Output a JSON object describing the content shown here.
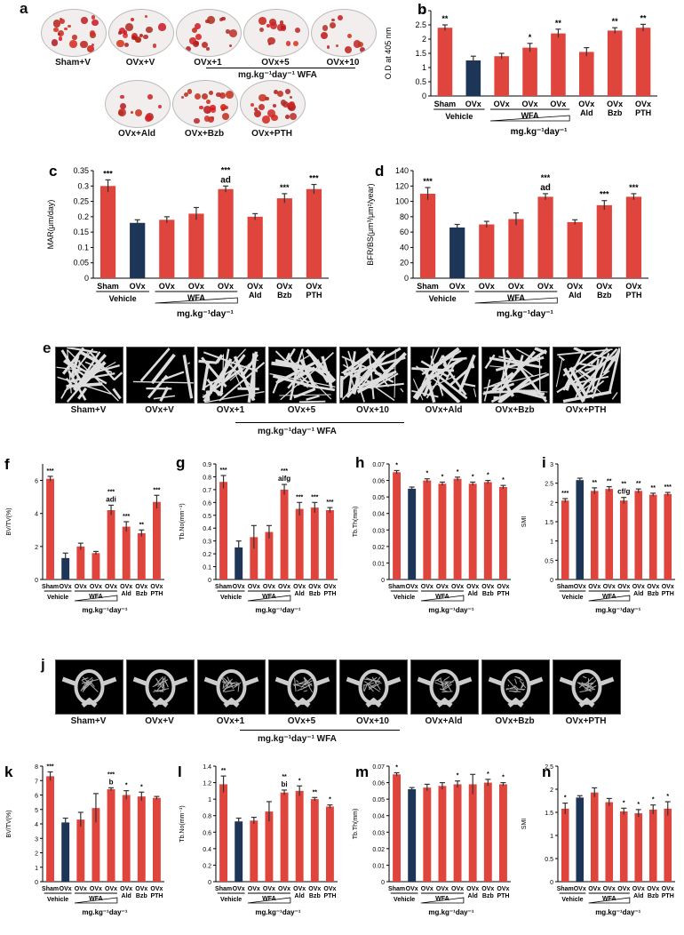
{
  "panels": {
    "a": {
      "label": "a",
      "row1": [
        "Sham+V",
        "OVx+V",
        "OVx+1",
        "OVx+5",
        "OVx+10"
      ],
      "row2": [
        "OVx+Ald",
        "OVx+Bzb",
        "OVx+PTH"
      ],
      "caption": "mg.kg⁻¹day⁻¹ WFA"
    },
    "e": {
      "label": "e",
      "images": [
        "Sham+V",
        "OVx+V",
        "OVx+1",
        "OVx+5",
        "OVx+10",
        "OVx+Ald",
        "OVx+Bzb",
        "OVx+PTH"
      ],
      "caption": "mg.kg⁻¹day⁻¹ WFA"
    },
    "j": {
      "label": "j",
      "images": [
        "Sham+V",
        "OVx+V",
        "OVx+1",
        "OVx+5",
        "OVx+10",
        "OVx+Ald",
        "OVx+Bzb",
        "OVx+PTH"
      ],
      "caption": "mg.kg⁻¹day⁻¹ WFA"
    }
  },
  "colors": {
    "red": "#e0453d",
    "navy": "#1d3557",
    "error": "#333333"
  },
  "chart_data": [
    {
      "id": "b",
      "type": "bar",
      "ylabel": "O.D at 405 nm",
      "ylim": [
        0,
        3
      ],
      "yticks": [
        0,
        0.5,
        1,
        1.5,
        2,
        2.5,
        3
      ],
      "groups": [
        "Sham",
        "OVx",
        "OVx",
        "OVx",
        "OVx",
        "OVx\nAld",
        "OVx\nBzb",
        "OVx\nPTH"
      ],
      "values": [
        2.4,
        1.25,
        1.4,
        1.7,
        2.2,
        1.55,
        2.3,
        2.4
      ],
      "errors": [
        0.1,
        0.15,
        0.1,
        0.15,
        0.15,
        0.15,
        0.1,
        0.12
      ],
      "sig": [
        "**",
        "",
        "",
        "*",
        "**",
        "",
        "**",
        "**"
      ],
      "sub": [
        "",
        ""
      ],
      "vehicle": "Vehicle",
      "wfa": "WFA",
      "unit": "mg.kg⁻¹day⁻¹"
    },
    {
      "id": "c",
      "type": "bar",
      "ylabel": "MAR(μm/day)",
      "ylim": [
        0,
        0.35
      ],
      "yticks": [
        0,
        0.05,
        0.1,
        0.15,
        0.2,
        0.25,
        0.3,
        0.35
      ],
      "groups": [
        "Sham",
        "OVx",
        "OVx",
        "OVx",
        "OVx",
        "OVx\nAld",
        "OVx\nBzb",
        "OVx\nPTH"
      ],
      "values": [
        0.3,
        0.18,
        0.19,
        0.21,
        0.29,
        0.2,
        0.26,
        0.29
      ],
      "errors": [
        0.02,
        0.01,
        0.01,
        0.02,
        0.01,
        0.01,
        0.015,
        0.015
      ],
      "sig": [
        "***",
        "",
        "",
        "",
        "***\nad",
        "",
        "***",
        "***"
      ],
      "vehicle": "Vehicle",
      "wfa": "WFA",
      "unit": "mg.kg⁻¹day⁻¹"
    },
    {
      "id": "d",
      "type": "bar",
      "ylabel": "BFR/BS(μm³/μm²/year)",
      "ylim": [
        0,
        140
      ],
      "yticks": [
        0,
        20,
        40,
        60,
        80,
        100,
        120,
        140
      ],
      "groups": [
        "Sham",
        "OVx",
        "OVx",
        "OVx",
        "OVx",
        "OVx\nAld",
        "OVx\nBzb",
        "OVx\nPTH"
      ],
      "values": [
        110,
        66,
        70,
        77,
        106,
        73,
        95,
        106
      ],
      "errors": [
        8,
        4,
        4,
        8,
        4,
        3,
        6,
        4
      ],
      "sig": [
        "***",
        "",
        "",
        "",
        "***\nad",
        "",
        "***",
        "***"
      ],
      "vehicle": "Vehicle",
      "wfa": "WFA",
      "unit": "mg.kg⁻¹day⁻¹"
    },
    {
      "id": "f",
      "type": "bar",
      "ylabel": "BV/TV(%)",
      "ylim": [
        0,
        7
      ],
      "yticks": [
        0,
        2,
        4,
        6
      ],
      "groups": [
        "Sham",
        "OVx",
        "OVx",
        "OVx",
        "OVx",
        "OVx\nAld",
        "OVx\nBzb",
        "OVx\nPTH"
      ],
      "values": [
        6.1,
        1.3,
        2.0,
        1.6,
        4.2,
        3.2,
        2.8,
        4.7
      ],
      "errors": [
        0.15,
        0.3,
        0.2,
        0.1,
        0.3,
        0.3,
        0.2,
        0.4
      ],
      "sig": [
        "***",
        "",
        "",
        "",
        "***\nadi",
        "***",
        "**",
        "***"
      ],
      "vehicle": "Vehicle",
      "wfa": "WFA",
      "unit": "mg.kg⁻¹day⁻¹"
    },
    {
      "id": "g",
      "type": "bar",
      "ylabel": "Tb.No(mm⁻¹)",
      "ylim": [
        0,
        0.9
      ],
      "yticks": [
        0,
        0.1,
        0.2,
        0.3,
        0.4,
        0.5,
        0.6,
        0.7,
        0.8,
        0.9
      ],
      "groups": [
        "Sham",
        "OVx",
        "OVx",
        "OVx",
        "OVx",
        "OVx\nAld",
        "OVx\nBzb",
        "OVx\nPTH"
      ],
      "values": [
        0.76,
        0.25,
        0.33,
        0.37,
        0.7,
        0.55,
        0.56,
        0.54
      ],
      "errors": [
        0.05,
        0.05,
        0.09,
        0.05,
        0.04,
        0.05,
        0.04,
        0.02
      ],
      "sig": [
        "***",
        "",
        "",
        "",
        "***\naifg",
        "***",
        "***",
        "***"
      ],
      "vehicle": "Vehicle",
      "wfa": "WFA",
      "unit": "mg.kg⁻¹day⁻¹"
    },
    {
      "id": "h",
      "type": "bar",
      "ylabel": "Tb.Th(mm)",
      "ylim": [
        0,
        0.07
      ],
      "yticks": [
        0,
        0.01,
        0.02,
        0.03,
        0.04,
        0.05,
        0.06,
        0.07
      ],
      "groups": [
        "Sham",
        "OVx",
        "OVx",
        "OVx",
        "OVx",
        "OVx\nAld",
        "OVx\nBzb",
        "OVx\nPTH"
      ],
      "values": [
        0.065,
        0.055,
        0.06,
        0.058,
        0.061,
        0.058,
        0.059,
        0.056
      ],
      "errors": [
        0.001,
        0.001,
        0.001,
        0.001,
        0.001,
        0.001,
        0.001,
        0.001
      ],
      "sig": [
        "*",
        "",
        "*",
        "*",
        "*",
        "*",
        "*",
        "*"
      ],
      "vehicle": "Vehicle",
      "wfa": "WFA",
      "unit": "mg.kg⁻¹day⁻¹"
    },
    {
      "id": "i",
      "type": "bar",
      "ylabel": "SMI",
      "ylim": [
        0,
        3
      ],
      "yticks": [
        0,
        0.5,
        1,
        1.5,
        2,
        2.5,
        3
      ],
      "groups": [
        "Sham",
        "OVx",
        "OVx",
        "OVx",
        "OVx",
        "OVx\nAld",
        "OVx\nBzb",
        "OVx\nPTH"
      ],
      "values": [
        2.05,
        2.58,
        2.3,
        2.35,
        2.05,
        2.3,
        2.2,
        2.22
      ],
      "errors": [
        0.05,
        0.05,
        0.08,
        0.06,
        0.08,
        0.05,
        0.04,
        0.04
      ],
      "sig": [
        "***",
        "",
        "**",
        "**",
        "**\ncf/g",
        "**",
        "**",
        "***"
      ],
      "vehicle": "Vehicle",
      "wfa": "WFA",
      "unit": "mg.kg⁻¹day⁻¹"
    },
    {
      "id": "k",
      "type": "bar",
      "ylabel": "BV/TV(%)",
      "ylim": [
        0,
        8
      ],
      "yticks": [
        0,
        1,
        2,
        3,
        4,
        5,
        6,
        7,
        8
      ],
      "groups": [
        "Sham",
        "OVx",
        "OVx",
        "OVx",
        "OVx",
        "OVx\nAld",
        "OVx\nBzb",
        "OVx\nPTH"
      ],
      "values": [
        7.3,
        4.1,
        4.3,
        5.1,
        6.4,
        6.0,
        5.9,
        5.8
      ],
      "errors": [
        0.3,
        0.3,
        0.5,
        1.0,
        0.1,
        0.3,
        0.3,
        0.1
      ],
      "sig": [
        "***",
        "",
        "",
        "",
        "***\nb",
        "*",
        "*",
        ""
      ],
      "vehicle": "Vehicle",
      "wfa": "WFA",
      "unit": "mg.kg⁻¹day⁻¹"
    },
    {
      "id": "l",
      "type": "bar",
      "ylabel": "Tb.No(mm⁻¹)",
      "ylim": [
        0,
        1.4
      ],
      "yticks": [
        0,
        0.2,
        0.4,
        0.6,
        0.8,
        1,
        1.2,
        1.4
      ],
      "groups": [
        "Sham",
        "OVx",
        "OVx",
        "OVx",
        "OVx",
        "OVx\nAld",
        "OVx\nBzb",
        "OVx\nPTH"
      ],
      "values": [
        1.18,
        0.73,
        0.74,
        0.85,
        1.08,
        1.1,
        1.0,
        0.91
      ],
      "errors": [
        0.1,
        0.04,
        0.04,
        0.12,
        0.03,
        0.06,
        0.02,
        0.02
      ],
      "sig": [
        "**",
        "",
        "",
        "",
        "**\nbi",
        "*",
        "**",
        "*"
      ],
      "vehicle": "Vehicle",
      "wfa": "WFA",
      "unit": "mg.kg⁻¹day⁻¹"
    },
    {
      "id": "m",
      "type": "bar",
      "ylabel": "Tb.Th(mm)",
      "ylim": [
        0,
        0.07
      ],
      "yticks": [
        0,
        0.01,
        0.02,
        0.03,
        0.04,
        0.05,
        0.06,
        0.07
      ],
      "groups": [
        "Sham",
        "OVx",
        "OVx",
        "OVx",
        "OVx",
        "OVx\nAld",
        "OVx\nBzb",
        "OVx\nPTH"
      ],
      "values": [
        0.065,
        0.056,
        0.057,
        0.058,
        0.059,
        0.059,
        0.06,
        0.059
      ],
      "errors": [
        0.001,
        0.001,
        0.002,
        0.002,
        0.002,
        0.006,
        0.002,
        0.001
      ],
      "sig": [
        "*",
        "",
        "",
        "",
        "*",
        "",
        "*",
        "*"
      ],
      "vehicle": "Vehicle",
      "wfa": "WFA",
      "unit": "mg.kg⁻¹day⁻¹"
    },
    {
      "id": "n",
      "type": "bar",
      "ylabel": "SMI",
      "ylim": [
        0,
        2.5
      ],
      "yticks": [
        0,
        0.5,
        1,
        1.5,
        2,
        2.5
      ],
      "groups": [
        "Sham",
        "OVx",
        "OVx",
        "OVx",
        "OVx",
        "OVx\nAld",
        "OVx\nBzb",
        "OVx\nPTH"
      ],
      "values": [
        1.58,
        1.82,
        1.93,
        1.72,
        1.52,
        1.48,
        1.56,
        1.58
      ],
      "errors": [
        0.12,
        0.04,
        0.1,
        0.08,
        0.07,
        0.08,
        0.1,
        0.15
      ],
      "sig": [
        "*",
        "",
        "",
        "",
        "*",
        "*",
        "*",
        "*"
      ],
      "vehicle": "Vehicle",
      "wfa": "WFA",
      "unit": "mg.kg⁻¹day⁻¹"
    }
  ]
}
